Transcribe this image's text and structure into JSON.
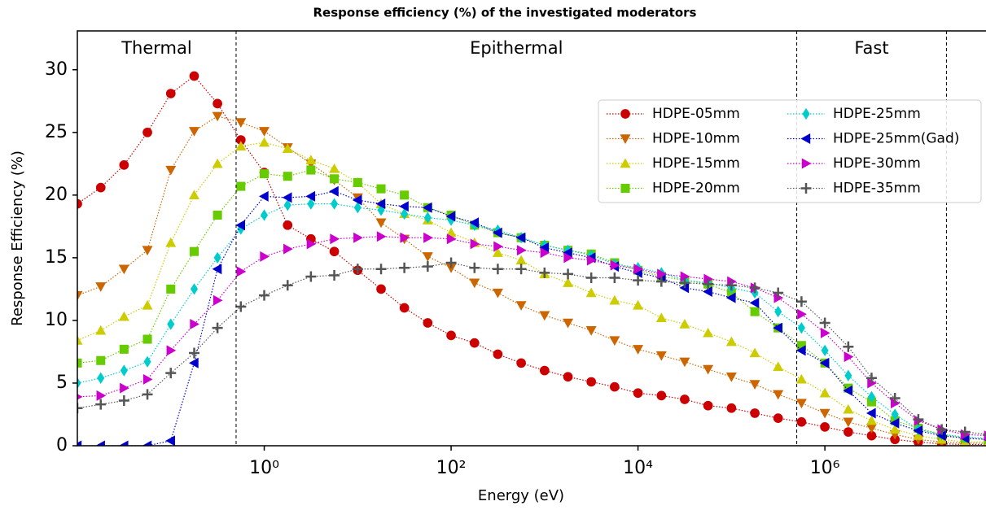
{
  "chart_data": {
    "type": "line",
    "title": "Response efficiency (%) of the investigated moderators",
    "x_label": "Energy (eV)",
    "y_label": "Response Efficiency (%)",
    "xscale": "log",
    "xlim": [
      0.01,
      53000000
    ],
    "ylim": [
      0,
      33.1
    ],
    "xticks": [
      {
        "value": 1,
        "label": "10⁰"
      },
      {
        "value": 100,
        "label": "10²"
      },
      {
        "value": 10000,
        "label": "10⁴"
      },
      {
        "value": 1000000,
        "label": "10⁶"
      }
    ],
    "yticks": [
      0,
      5,
      10,
      15,
      20,
      25,
      30
    ],
    "regions": [
      "Thermal",
      "Epithermal",
      "Fast"
    ],
    "region_boundaries": [
      0.5,
      500000,
      20000000
    ],
    "legend": "upper right",
    "x": [
      0.01,
      0.0178,
      0.0316,
      0.0562,
      0.1,
      0.178,
      0.316,
      0.562,
      1,
      1.78,
      3.16,
      5.62,
      10,
      17.8,
      31.6,
      56.2,
      100,
      178,
      316,
      562,
      1000,
      1780,
      3160,
      5620,
      10000,
      17800,
      31600,
      56200,
      100000,
      178000,
      316000,
      562000,
      1000000,
      1780000,
      3160000,
      5620000,
      10000000,
      17800000,
      31600000,
      56200000
    ],
    "series": [
      {
        "name": "HDPE-05mm",
        "color": "#cc0000",
        "marker": "o",
        "values": [
          19.3,
          20.6,
          22.4,
          25.0,
          28.1,
          29.5,
          27.3,
          24.4,
          21.8,
          17.6,
          16.5,
          15.5,
          14.0,
          12.5,
          11.0,
          9.8,
          8.8,
          8.2,
          7.3,
          6.6,
          6.0,
          5.5,
          5.1,
          4.7,
          4.2,
          4.0,
          3.7,
          3.2,
          3.0,
          2.6,
          2.2,
          1.9,
          1.5,
          1.1,
          0.8,
          0.5,
          0.3,
          0.15,
          0.1,
          0.1
        ]
      },
      {
        "name": "HDPE-10mm",
        "color": "#cc6600",
        "marker": "v",
        "values": [
          12.0,
          12.7,
          14.1,
          15.6,
          22.0,
          25.1,
          26.3,
          25.8,
          25.1,
          23.8,
          22.5,
          21.2,
          19.8,
          17.8,
          16.5,
          15.1,
          14.2,
          13.0,
          12.2,
          11.2,
          10.4,
          9.8,
          9.2,
          8.4,
          7.7,
          7.2,
          6.7,
          6.1,
          5.5,
          4.9,
          4.1,
          3.4,
          2.6,
          1.9,
          1.4,
          0.9,
          0.5,
          0.3,
          0.2,
          0.2
        ]
      },
      {
        "name": "HDPE-15mm",
        "color": "#cccc00",
        "marker": "^",
        "values": [
          8.4,
          9.2,
          10.3,
          11.2,
          16.2,
          20.0,
          22.5,
          23.9,
          24.2,
          23.7,
          22.8,
          22.1,
          21.0,
          19.3,
          18.5,
          18.0,
          17.0,
          16.2,
          15.4,
          14.8,
          13.7,
          13.0,
          12.2,
          11.6,
          11.2,
          10.2,
          9.7,
          9.0,
          8.3,
          7.4,
          6.3,
          5.3,
          4.2,
          2.9,
          2.0,
          1.3,
          0.8,
          0.5,
          0.3,
          0.3
        ]
      },
      {
        "name": "HDPE-20mm",
        "color": "#66cc00",
        "marker": "s",
        "values": [
          6.6,
          6.8,
          7.7,
          8.5,
          12.5,
          15.5,
          18.4,
          20.7,
          21.7,
          21.5,
          22.0,
          21.3,
          21.0,
          20.5,
          20.0,
          19.0,
          18.4,
          17.6,
          17.0,
          16.6,
          16.0,
          15.6,
          15.3,
          14.6,
          14.0,
          13.5,
          13.2,
          12.9,
          12.2,
          10.7,
          9.4,
          8.0,
          6.6,
          4.6,
          3.5,
          2.0,
          1.4,
          0.9,
          0.6,
          0.5
        ]
      },
      {
        "name": "HDPE-25mm",
        "color": "#00cccc",
        "marker": "d",
        "values": [
          5.0,
          5.4,
          6.0,
          6.7,
          9.7,
          12.5,
          15.0,
          17.3,
          18.4,
          19.2,
          19.3,
          19.3,
          19.0,
          18.8,
          18.5,
          18.2,
          18.0,
          17.6,
          17.2,
          16.6,
          16.0,
          15.6,
          15.2,
          14.5,
          14.2,
          13.8,
          13.2,
          13.0,
          12.6,
          12.2,
          10.7,
          9.4,
          7.6,
          5.6,
          3.9,
          2.5,
          1.3,
          0.9,
          0.7,
          0.6
        ]
      },
      {
        "name": "HDPE-25mm(Gad)",
        "color": "#0000cc",
        "marker": "<",
        "values": [
          0,
          0,
          0,
          0,
          0.4,
          6.6,
          14.1,
          17.6,
          19.9,
          19.8,
          19.9,
          20.3,
          19.6,
          19.3,
          19.1,
          19.0,
          18.3,
          17.8,
          17.0,
          16.6,
          15.8,
          15.4,
          15.0,
          14.3,
          13.8,
          13.4,
          12.6,
          12.3,
          11.8,
          11.4,
          9.4,
          7.6,
          6.6,
          4.4,
          2.6,
          1.8,
          1.2,
          0.8,
          0.6,
          0.5
        ]
      },
      {
        "name": "HDPE-30mm",
        "color": "#cc00cc",
        "marker": ">",
        "values": [
          3.9,
          4.0,
          4.6,
          5.3,
          7.6,
          9.7,
          11.6,
          13.9,
          15.1,
          15.7,
          16.1,
          16.5,
          16.6,
          16.7,
          16.6,
          16.6,
          16.5,
          16.1,
          15.9,
          15.6,
          15.4,
          15.0,
          14.8,
          14.4,
          14.1,
          13.7,
          13.5,
          13.3,
          13.1,
          12.6,
          11.8,
          10.5,
          9.0,
          7.1,
          5.0,
          3.4,
          2.0,
          1.3,
          0.9,
          0.8
        ]
      },
      {
        "name": "HDPE-35mm",
        "color": "#555555",
        "marker": "+",
        "values": [
          3.0,
          3.3,
          3.6,
          4.1,
          5.8,
          7.4,
          9.4,
          11.1,
          12.0,
          12.8,
          13.5,
          13.6,
          14.1,
          14.1,
          14.2,
          14.3,
          14.6,
          14.2,
          14.1,
          14.1,
          13.8,
          13.7,
          13.4,
          13.4,
          13.2,
          13.1,
          13.0,
          12.9,
          12.8,
          12.6,
          12.2,
          11.5,
          9.8,
          7.9,
          5.4,
          3.8,
          2.1,
          1.3,
          1.1,
          0.9
        ]
      }
    ]
  }
}
